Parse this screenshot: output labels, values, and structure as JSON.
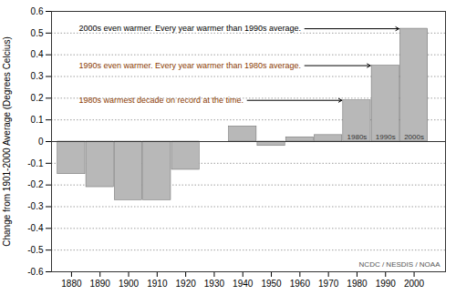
{
  "chart_data": {
    "type": "bar",
    "x": [
      1880,
      1890,
      1900,
      1910,
      1920,
      1930,
      1940,
      1950,
      1960,
      1970,
      1980,
      1990,
      2000
    ],
    "values": [
      -0.15,
      -0.21,
      -0.27,
      -0.27,
      -0.13,
      0.0,
      0.07,
      -0.02,
      0.02,
      0.03,
      0.19,
      0.35,
      0.52
    ],
    "color": "#b8b8b8",
    "xlim": [
      1873,
      2011
    ],
    "xticks": [
      1880,
      1890,
      1900,
      1910,
      1920,
      1930,
      1940,
      1950,
      1960,
      1970,
      1980,
      1990,
      2000
    ],
    "ylim": [
      -0.6,
      0.6
    ],
    "yticks": [
      -0.6,
      -0.5,
      -0.4,
      -0.3,
      -0.2,
      -0.1,
      0,
      0.1,
      0.2,
      0.3,
      0.4,
      0.5,
      0.6
    ],
    "ylabel": "Change from 1901-2000 Average (Degrees Celcius)",
    "grid": true,
    "annotations": [
      {
        "text": "2000s even warmer. Every year warmer than 1990s average.",
        "x": 2000,
        "color": "#000000",
        "arrow": true
      },
      {
        "text": "1990s even warmer. Every year warmer than 1980s average.",
        "x": 1990,
        "color": "#8B3A00",
        "arrow": true
      },
      {
        "text": "1980s warmest decade on record at the time.",
        "x": 1980,
        "color": "#8B3A00",
        "arrow": true
      },
      {
        "text": "1980s",
        "x": 1980,
        "color": "#333333"
      },
      {
        "text": "1990s",
        "x": 1990,
        "color": "#333333"
      },
      {
        "text": "2000s",
        "x": 2000,
        "color": "#333333"
      },
      {
        "text": "NCDC / NESDIS / NOAA",
        "color": "#555555"
      }
    ]
  }
}
